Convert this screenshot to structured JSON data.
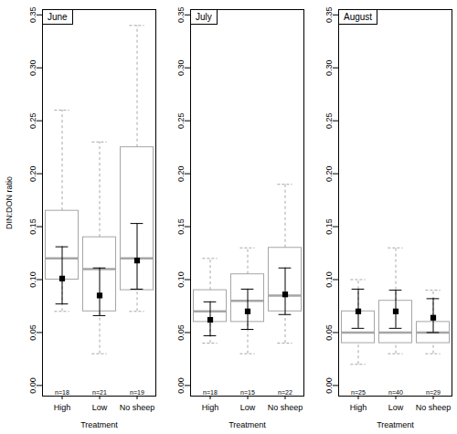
{
  "chart_data": [
    {
      "type": "box",
      "title": "June",
      "x_label": "Treatment",
      "y_label": "DIN:DON ratio",
      "categories": [
        "High",
        "Low",
        "No sheep"
      ],
      "n_labels": [
        "n=18",
        "n=21",
        "n=19"
      ],
      "whisker_low": [
        0.07,
        0.03,
        0.07
      ],
      "q1": [
        0.1,
        0.07,
        0.09
      ],
      "median": [
        0.12,
        0.11,
        0.12
      ],
      "q3": [
        0.165,
        0.14,
        0.225
      ],
      "whisker_high": [
        0.26,
        0.23,
        0.34
      ],
      "mean": [
        0.101,
        0.085,
        0.118
      ],
      "mean_ci_low": [
        0.077,
        0.066,
        0.091
      ],
      "mean_ci_high": [
        0.131,
        0.111,
        0.153
      ],
      "color": "#a6a6a6",
      "ylim": [
        -0.01,
        0.355
      ],
      "yticks": [
        {
          "value": 0,
          "label": "0.00"
        },
        0.05,
        {
          "value": 0.1,
          "label": "0.10"
        },
        0.15,
        {
          "value": 0.2,
          "label": "0.20"
        },
        0.25,
        {
          "value": 0.3,
          "label": "0.30"
        },
        0.35
      ]
    },
    {
      "type": "box",
      "title": "July",
      "x_label": "Treatment",
      "categories": [
        "High",
        "Low",
        "No sheep"
      ],
      "n_labels": [
        "n=18",
        "n=15",
        "n=22"
      ],
      "whisker_low": [
        0.04,
        0.03,
        0.04
      ],
      "q1": [
        0.06,
        0.06,
        0.07
      ],
      "median": [
        0.07,
        0.08,
        0.085
      ],
      "q3": [
        0.09,
        0.105,
        0.13
      ],
      "whisker_high": [
        0.12,
        0.13,
        0.19
      ],
      "mean": [
        0.062,
        0.07,
        0.086
      ],
      "mean_ci_low": [
        0.047,
        0.053,
        0.067
      ],
      "mean_ci_high": [
        0.079,
        0.091,
        0.111
      ],
      "color": "#a6a6a6",
      "ylim": [
        -0.01,
        0.355
      ],
      "yticks": [
        {
          "value": 0,
          "label": "0.00"
        },
        0.05,
        {
          "value": 0.1,
          "label": "0.10"
        },
        0.15,
        {
          "value": 0.2,
          "label": "0.20"
        },
        0.25,
        {
          "value": 0.3,
          "label": "0.30"
        },
        0.35
      ]
    },
    {
      "type": "box",
      "title": "August",
      "x_label": "Treatment",
      "categories": [
        "High",
        "Low",
        "No sheep"
      ],
      "n_labels": [
        "n=25",
        "n=40",
        "n=29"
      ],
      "whisker_low": [
        0.02,
        0.03,
        0.03
      ],
      "q1": [
        0.04,
        0.04,
        0.04
      ],
      "median": [
        0.05,
        0.05,
        0.05
      ],
      "q3": [
        0.07,
        0.08,
        0.06
      ],
      "whisker_high": [
        0.1,
        0.13,
        0.09
      ],
      "mean": [
        0.07,
        0.07,
        0.064
      ],
      "mean_ci_low": [
        0.054,
        0.054,
        0.05
      ],
      "mean_ci_high": [
        0.091,
        0.09,
        0.082
      ],
      "color": "#a6a6a6",
      "ylim": [
        -0.01,
        0.355
      ],
      "yticks": [
        {
          "value": 0,
          "label": "0.00"
        },
        0.05,
        {
          "value": 0.1,
          "label": "0.10"
        },
        0.15,
        {
          "value": 0.2,
          "label": "0.20"
        },
        0.25,
        {
          "value": 0.3,
          "label": "0.30"
        },
        0.35
      ]
    }
  ]
}
